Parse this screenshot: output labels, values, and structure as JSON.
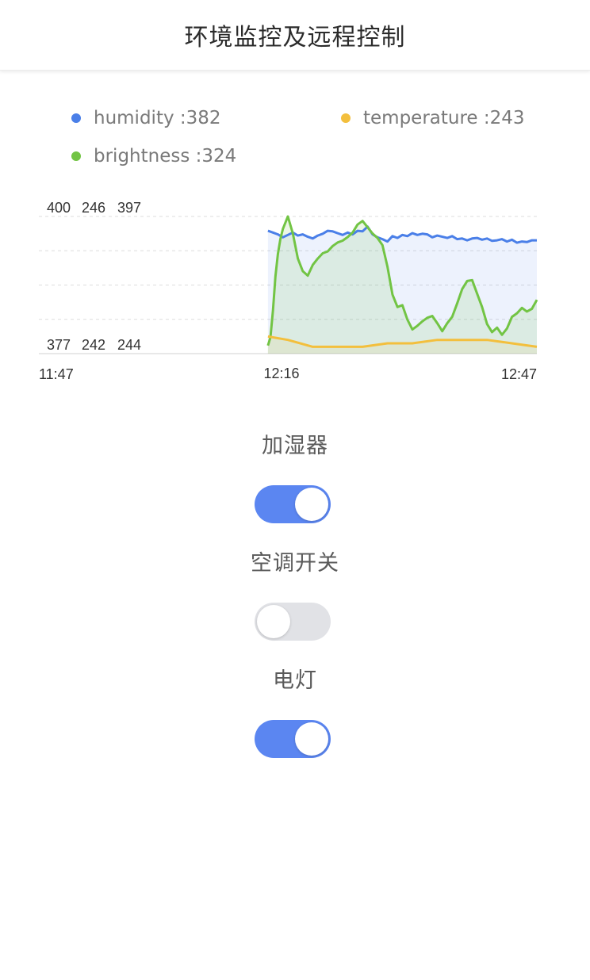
{
  "header": {
    "title": "环境监控及远程控制"
  },
  "legend": [
    {
      "name": "humidity",
      "value_text": ":382",
      "color": "#4a7fe8"
    },
    {
      "name": "temperature",
      "value_text": ":243",
      "color": "#f3bf3d"
    },
    {
      "name": "brightness",
      "value_text": ":324",
      "color": "#72c444"
    }
  ],
  "chart_data": {
    "type": "line",
    "x_ticks": [
      "11:47",
      "12:16",
      "12:47"
    ],
    "y_top_labels": [
      "400",
      "246",
      "397"
    ],
    "y_bottom_labels": [
      "377",
      "242",
      "244"
    ],
    "grid": true,
    "series": [
      {
        "name": "humidity",
        "color": "#4a7fe8",
        "ymin": 377,
        "ymax": 400,
        "x": [
          0.46,
          0.47,
          0.48,
          0.49,
          0.5,
          0.51,
          0.52,
          0.53,
          0.54,
          0.55,
          0.56,
          0.57,
          0.58,
          0.59,
          0.6,
          0.61,
          0.62,
          0.63,
          0.64,
          0.65,
          0.66,
          0.67,
          0.68,
          0.69,
          0.7,
          0.71,
          0.72,
          0.73,
          0.74,
          0.75,
          0.76,
          0.77,
          0.78,
          0.79,
          0.8,
          0.81,
          0.82,
          0.83,
          0.84,
          0.85,
          0.86,
          0.87,
          0.88,
          0.89,
          0.9,
          0.91,
          0.92,
          0.93,
          0.94,
          0.95,
          0.96,
          0.97,
          0.98,
          0.99,
          1.0
        ],
        "values": [
          397.6,
          397.3,
          397.0,
          396.5,
          396.9,
          397.3,
          396.8,
          397.0,
          396.6,
          396.3,
          396.8,
          397.1,
          397.6,
          397.5,
          397.2,
          396.9,
          397.3,
          397.0,
          397.6,
          397.5,
          398.3,
          397.0,
          396.5,
          396.2,
          395.8,
          396.7,
          396.4,
          396.9,
          396.7,
          397.2,
          396.9,
          397.1,
          397.0,
          396.5,
          396.8,
          396.6,
          396.4,
          396.7,
          396.2,
          396.3,
          396.0,
          396.3,
          396.4,
          396.1,
          396.3,
          395.9,
          396.0,
          396.2,
          395.8,
          396.1,
          395.6,
          395.8,
          395.7,
          396.0,
          396.0
        ]
      },
      {
        "name": "brightness",
        "color": "#72c444",
        "ymin": 244,
        "ymax": 397,
        "x": [
          0.46,
          0.465,
          0.47,
          0.475,
          0.48,
          0.485,
          0.49,
          0.5,
          0.51,
          0.52,
          0.53,
          0.54,
          0.55,
          0.56,
          0.57,
          0.58,
          0.59,
          0.6,
          0.61,
          0.62,
          0.63,
          0.64,
          0.65,
          0.66,
          0.67,
          0.68,
          0.69,
          0.7,
          0.71,
          0.72,
          0.73,
          0.74,
          0.75,
          0.76,
          0.77,
          0.78,
          0.79,
          0.8,
          0.81,
          0.82,
          0.83,
          0.84,
          0.85,
          0.86,
          0.87,
          0.88,
          0.89,
          0.9,
          0.91,
          0.92,
          0.93,
          0.94,
          0.95,
          0.96,
          0.97,
          0.98,
          0.99,
          1.0
        ],
        "values": [
          253,
          262,
          292,
          330,
          355,
          372,
          383,
          397,
          378,
          350,
          336,
          331,
          343,
          350,
          356,
          358,
          364,
          368,
          370,
          374,
          379,
          388,
          392,
          385,
          378,
          373,
          365,
          341,
          310,
          296,
          298,
          282,
          271,
          275,
          280,
          284,
          286,
          278,
          269,
          278,
          285,
          300,
          316,
          325,
          326,
          311,
          296,
          277,
          268,
          273,
          265,
          272,
          285,
          289,
          295,
          291,
          294,
          304
        ]
      },
      {
        "name": "temperature",
        "color": "#f3bf3d",
        "ymin": 242,
        "ymax": 246,
        "x": [
          0.46,
          0.5,
          0.55,
          0.6,
          0.65,
          0.7,
          0.75,
          0.8,
          0.85,
          0.9,
          0.95,
          1.0
        ],
        "values": [
          242.5,
          242.4,
          242.2,
          242.2,
          242.2,
          242.3,
          242.3,
          242.4,
          242.4,
          242.4,
          242.3,
          242.2
        ]
      }
    ]
  },
  "controls": [
    {
      "label": "加湿器",
      "state": "on"
    },
    {
      "label": "空调开关",
      "state": "off"
    },
    {
      "label": "电灯",
      "state": "on"
    }
  ]
}
